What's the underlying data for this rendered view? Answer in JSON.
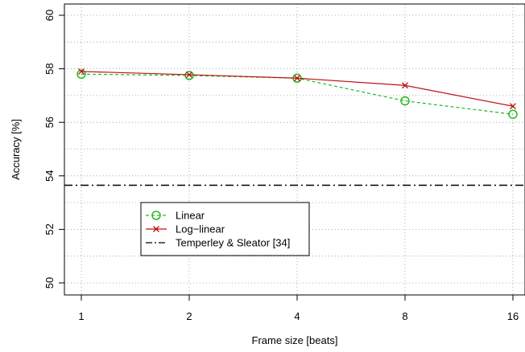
{
  "colors": {
    "linear": "#22bb22",
    "loglinear": "#bb1111",
    "reference": "#000000",
    "grid": "#999999"
  },
  "chart_data": {
    "type": "line",
    "title": "",
    "xlabel": "Frame size [beats]",
    "ylabel": "Accuracy [%]",
    "categories": [
      "1",
      "2",
      "4",
      "8",
      "16"
    ],
    "ylim": [
      50,
      60
    ],
    "yticks": [
      "50",
      "52",
      "54",
      "56",
      "58",
      "60"
    ],
    "grid": true,
    "legend_position": "bottom-left",
    "series": [
      {
        "name": "Linear",
        "values": [
          57.8,
          57.75,
          57.65,
          56.8,
          56.3
        ],
        "line_style": "dashed",
        "marker": "circle"
      },
      {
        "name": "Log−linear",
        "values": [
          57.9,
          57.78,
          57.65,
          57.38,
          56.6
        ],
        "line_style": "solid",
        "marker": "x"
      }
    ],
    "reference_lines": [
      {
        "name": "Temperley & Sleator [34]",
        "value": 53.65,
        "line_style": "dash-dot"
      }
    ]
  }
}
